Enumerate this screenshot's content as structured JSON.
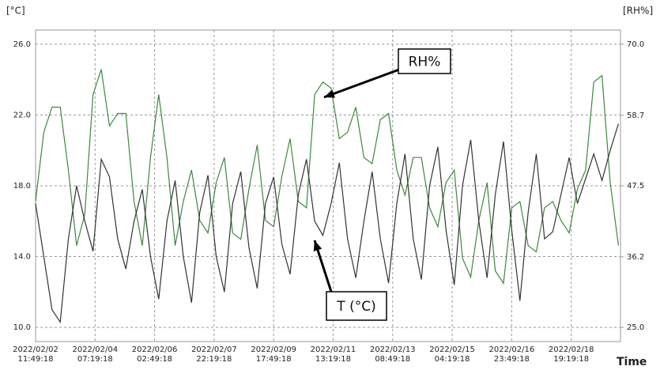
{
  "chart_data": {
    "type": "line",
    "y_label": "[°C]",
    "y2_label": "[RH%]",
    "x_label": "Time",
    "xlim": [
      "2022/02/02 11:49:18",
      "2022/02/20 07:19:18"
    ],
    "xticks": [
      "2022/02/02 11:49:18",
      "2022/02/04 07:19:18",
      "2022/02/06 02:49:18",
      "2022/02/07 22:19:18",
      "2022/02/09 17:49:18",
      "2022/02/11 13:19:18",
      "2022/02/13 08:49:18",
      "2022/02/15 04:19:18",
      "2022/02/16 23:49:18",
      "2022/02/18 19:19:18"
    ],
    "ylim": [
      9.2,
      26.8
    ],
    "yticks": [
      {
        "value": 10,
        "label": "10.0"
      },
      {
        "value": 14,
        "label": "14.0"
      },
      {
        "value": 18,
        "label": "18.0"
      },
      {
        "value": 22,
        "label": "22.0"
      },
      {
        "value": 26,
        "label": "26.0"
      }
    ],
    "y2lim": [
      22.75,
      72.25
    ],
    "y2ticks": [
      {
        "value": 25,
        "label": "25.0"
      },
      {
        "value": 36.2,
        "label": "36.2"
      },
      {
        "value": 47.5,
        "label": "47.5"
      },
      {
        "value": 58.7,
        "label": "58.7"
      },
      {
        "value": 70,
        "label": "70.0"
      }
    ],
    "grid": true,
    "x": [
      "2022/02/02 11:49:18",
      "2022/02/02 17:49:18",
      "2022/02/02 23:49:18",
      "2022/02/03 05:49:18",
      "2022/02/03 11:49:18",
      "2022/02/03 17:49:18",
      "2022/02/03 23:49:18",
      "2022/02/04 05:49:18",
      "2022/02/04 11:49:18",
      "2022/02/04 17:49:18",
      "2022/02/04 23:49:18",
      "2022/02/05 05:49:18",
      "2022/02/05 11:49:18",
      "2022/02/05 17:49:18",
      "2022/02/05 23:49:18",
      "2022/02/06 05:49:18",
      "2022/02/06 11:49:18",
      "2022/02/06 17:49:18",
      "2022/02/06 23:49:18",
      "2022/02/07 05:49:18",
      "2022/02/07 11:49:18",
      "2022/02/07 17:49:18",
      "2022/02/07 23:49:18",
      "2022/02/08 05:49:18",
      "2022/02/08 11:49:18",
      "2022/02/08 17:49:18",
      "2022/02/08 23:49:18",
      "2022/02/09 05:49:18",
      "2022/02/09 11:49:18",
      "2022/02/09 17:49:18",
      "2022/02/09 23:49:18",
      "2022/02/10 05:49:18",
      "2022/02/10 11:49:18",
      "2022/02/10 17:49:18",
      "2022/02/10 23:49:18",
      "2022/02/11 05:49:18",
      "2022/02/11 11:49:18",
      "2022/02/11 17:49:18",
      "2022/02/11 23:49:18",
      "2022/02/12 05:49:18",
      "2022/02/12 11:49:18",
      "2022/02/12 17:49:18",
      "2022/02/12 23:49:18",
      "2022/02/13 05:49:18",
      "2022/02/13 11:49:18",
      "2022/02/13 17:49:18",
      "2022/02/13 23:49:18",
      "2022/02/14 05:49:18",
      "2022/02/14 11:49:18",
      "2022/02/14 17:49:18",
      "2022/02/14 23:49:18",
      "2022/02/15 05:49:18",
      "2022/02/15 11:49:18",
      "2022/02/15 17:49:18",
      "2022/02/15 23:49:18",
      "2022/02/16 05:49:18",
      "2022/02/16 11:49:18",
      "2022/02/16 17:49:18",
      "2022/02/16 23:49:18",
      "2022/02/17 05:49:18",
      "2022/02/17 11:49:18",
      "2022/02/17 17:49:18",
      "2022/02/17 23:49:18",
      "2022/02/18 05:49:18",
      "2022/02/18 11:49:18",
      "2022/02/18 17:49:18",
      "2022/02/18 23:49:18",
      "2022/02/19 05:49:18",
      "2022/02/19 11:49:18",
      "2022/02/19 17:49:18",
      "2022/02/19 23:49:18",
      "2022/02/20 05:49:18"
    ],
    "series": [
      {
        "name": "T (°C)",
        "color": "#333333",
        "values": [
          17,
          14,
          11,
          10.3,
          15,
          18,
          16,
          14.3,
          19.5,
          18.5,
          15,
          13.3,
          16,
          17.8,
          14,
          11.6,
          16,
          18.3,
          14,
          11.4,
          16.5,
          18.6,
          14,
          12,
          17,
          18.8,
          14.5,
          12.2,
          17,
          18.5,
          14.7,
          13,
          17.5,
          19.5,
          16,
          15.2,
          17,
          19.3,
          15,
          12.8,
          16,
          18.8,
          15,
          12.5,
          17,
          19.8,
          15,
          12.7,
          18,
          20.2,
          15.5,
          12.4,
          18,
          20.6,
          16,
          12.8,
          17.5,
          20.5,
          15.5,
          11.5,
          16.5,
          19.8,
          15,
          15.4,
          17.5,
          19.6,
          17,
          18.4,
          19.8,
          18.3,
          20,
          21.5
        ]
      },
      {
        "name": "RH%",
        "color": "#3a8a3a",
        "axis": "y2",
        "values": [
          45,
          56,
          60,
          60,
          50,
          38,
          43,
          62,
          66,
          57,
          59,
          59,
          45,
          38,
          52,
          62,
          52,
          38,
          45,
          50,
          42,
          40,
          48,
          52,
          40,
          39,
          47,
          54,
          42,
          41,
          49,
          55,
          45,
          44,
          62,
          64,
          63,
          55,
          56,
          60,
          52,
          51,
          58,
          59,
          50,
          46,
          52,
          52,
          44,
          41,
          48,
          50,
          36,
          33,
          42,
          48,
          34,
          32,
          44,
          45,
          38,
          37,
          44,
          45,
          42,
          40,
          47,
          50,
          64,
          65,
          48,
          38
        ]
      }
    ]
  }
}
